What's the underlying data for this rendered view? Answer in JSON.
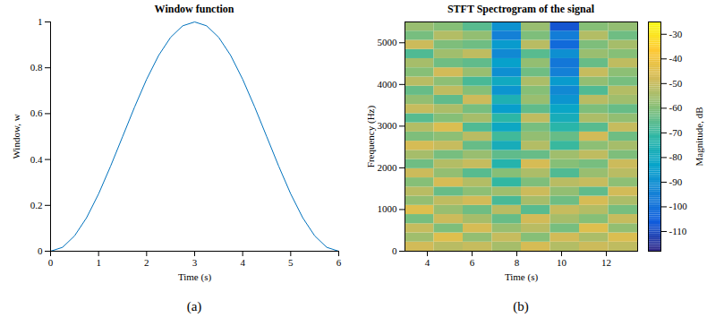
{
  "chart_data": [
    {
      "type": "line",
      "title": "Window function",
      "caption": "(a)",
      "x_label": "Time (s)",
      "y_label": "Window, w",
      "x": [
        0,
        0.25,
        0.5,
        0.75,
        1,
        1.25,
        1.5,
        1.75,
        2,
        2.25,
        2.5,
        2.75,
        3,
        3.25,
        3.5,
        3.75,
        4,
        4.25,
        4.5,
        4.75,
        5,
        5.25,
        5.5,
        5.75,
        6
      ],
      "values": [
        0,
        0.017,
        0.067,
        0.146,
        0.25,
        0.371,
        0.5,
        0.629,
        0.75,
        0.854,
        0.933,
        0.983,
        1,
        0.983,
        0.933,
        0.854,
        0.75,
        0.629,
        0.5,
        0.371,
        0.25,
        0.146,
        0.067,
        0.017,
        0
      ],
      "color": "#0072bd",
      "xlim": [
        0,
        6
      ],
      "xticks": [
        0,
        1,
        2,
        3,
        4,
        5,
        6
      ],
      "ylim": [
        0,
        1
      ],
      "yticks": [
        0,
        0.2,
        0.4,
        0.6,
        0.8,
        1
      ]
    },
    {
      "type": "heatmap",
      "title": "STFT Spectrogram of the signal",
      "caption": "(b)",
      "x_label": "Time (s)",
      "y_label": "Frequency (Hz)",
      "x_edges": [
        3,
        4.3,
        5.6,
        6.9,
        8.2,
        9.5,
        10.8,
        12.1,
        13.4
      ],
      "y_edges": [
        0,
        220,
        440,
        660,
        880,
        1100,
        1320,
        1540,
        1760,
        1980,
        2200,
        2420,
        2640,
        2860,
        3080,
        3300,
        3520,
        3740,
        3960,
        4180,
        4400,
        4620,
        4840,
        5060,
        5280,
        5500
      ],
      "cells": [
        [
          -48,
          -52,
          -50,
          -55,
          -47,
          -53,
          -49,
          -51
        ],
        [
          -56,
          -45,
          -58,
          -50,
          -60,
          -48,
          -54,
          -46
        ],
        [
          -50,
          -61,
          -47,
          -57,
          -52,
          -62,
          -45,
          -58
        ],
        [
          -62,
          -49,
          -55,
          -64,
          -48,
          -55,
          -60,
          -50
        ],
        [
          -45,
          -57,
          -63,
          -52,
          -66,
          -50,
          -53,
          -62
        ],
        [
          -58,
          -51,
          -48,
          -68,
          -55,
          -63,
          -47,
          -54
        ],
        [
          -52,
          -64,
          -59,
          -56,
          -49,
          -58,
          -65,
          -48
        ],
        [
          -60,
          -47,
          -53,
          -71,
          -61,
          -52,
          -50,
          -59
        ],
        [
          -49,
          -58,
          -66,
          -60,
          -54,
          -67,
          -57,
          -52
        ],
        [
          -63,
          -53,
          -50,
          -74,
          -47,
          -60,
          -62,
          -49
        ],
        [
          -55,
          -62,
          -57,
          -65,
          -64,
          -56,
          -51,
          -61
        ],
        [
          -47,
          -50,
          -64,
          -78,
          -53,
          -70,
          -59,
          -55
        ],
        [
          -61,
          -59,
          -52,
          -69,
          -58,
          -64,
          -48,
          -63
        ],
        [
          -53,
          -46,
          -67,
          -81,
          -62,
          -73,
          -66,
          -50
        ],
        [
          -66,
          -60,
          -55,
          -72,
          -51,
          -78,
          -54,
          -58
        ],
        [
          -50,
          -54,
          -62,
          -85,
          -65,
          -82,
          -61,
          -64
        ],
        [
          -58,
          -65,
          -49,
          -76,
          -57,
          -88,
          -52,
          -56
        ],
        [
          -64,
          -51,
          -60,
          -88,
          -60,
          -92,
          -67,
          -53
        ],
        [
          -52,
          -59,
          -68,
          -80,
          -54,
          -86,
          -58,
          -62
        ],
        [
          -60,
          -48,
          -57,
          -90,
          -63,
          -95,
          -50,
          -59
        ],
        [
          -55,
          -63,
          -65,
          -84,
          -58,
          -98,
          -64,
          -51
        ],
        [
          -67,
          -56,
          -51,
          -92,
          -66,
          -90,
          -57,
          -60
        ],
        [
          -49,
          -61,
          -63,
          -86,
          -52,
          -102,
          -61,
          -55
        ],
        [
          -62,
          -53,
          -58,
          -95,
          -61,
          -96,
          -53,
          -63
        ],
        [
          -57,
          -60,
          -66,
          -89,
          -57,
          -108,
          -60,
          -58
        ]
      ],
      "xlim": [
        3,
        13.4
      ],
      "xticks": [
        4,
        6,
        8,
        10,
        12
      ],
      "ylim": [
        0,
        5500
      ],
      "yticks": [
        0,
        1000,
        2000,
        3000,
        4000,
        5000
      ],
      "colorbar_label": "Magnitude, dB",
      "clim": [
        -118,
        -25
      ],
      "cticks": [
        -110,
        -100,
        -90,
        -80,
        -70,
        -60,
        -50,
        -40,
        -30
      ]
    }
  ]
}
